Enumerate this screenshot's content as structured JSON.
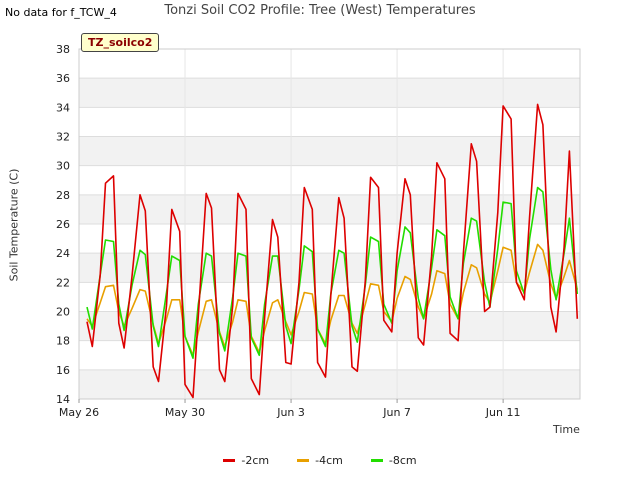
{
  "page": {
    "corner_note": "No data for f_TCW_4",
    "site_label": "TZ_soilco2"
  },
  "chart_data": {
    "type": "line",
    "title": "Tonzi Soil CO2 Profile: Tree (West) Temperatures",
    "xlabel": "Time",
    "ylabel": "Soil Temperature (C)",
    "ylim": [
      14,
      38
    ],
    "y_ticks": [
      14,
      16,
      18,
      20,
      22,
      24,
      26,
      28,
      30,
      32,
      34,
      36,
      38
    ],
    "x_ticks": [
      {
        "label": "May 26",
        "day": 0
      },
      {
        "label": "May 30",
        "day": 4
      },
      {
        "label": "Jun 3",
        "day": 8
      },
      {
        "label": "Jun 7",
        "day": 12
      },
      {
        "label": "Jun 11",
        "day": 16
      }
    ],
    "xlim_days": [
      0,
      18.9
    ],
    "grid": true,
    "legend_position": "bottom",
    "series": [
      {
        "name": "-2cm",
        "color": "#dd0000",
        "points": [
          [
            0.3,
            19.3
          ],
          [
            0.5,
            17.6
          ],
          [
            0.8,
            22.5
          ],
          [
            1.0,
            28.8
          ],
          [
            1.3,
            29.3
          ],
          [
            1.5,
            19.2
          ],
          [
            1.7,
            17.5
          ],
          [
            2.0,
            22.4
          ],
          [
            2.3,
            28.0
          ],
          [
            2.5,
            26.9
          ],
          [
            2.8,
            16.2
          ],
          [
            3.0,
            15.2
          ],
          [
            3.3,
            20.4
          ],
          [
            3.5,
            27.0
          ],
          [
            3.8,
            25.5
          ],
          [
            4.0,
            15.0
          ],
          [
            4.3,
            14.1
          ],
          [
            4.5,
            19.7
          ],
          [
            4.8,
            28.1
          ],
          [
            5.0,
            27.1
          ],
          [
            5.3,
            16.0
          ],
          [
            5.5,
            15.2
          ],
          [
            5.8,
            20.4
          ],
          [
            6.0,
            28.1
          ],
          [
            6.3,
            27.0
          ],
          [
            6.5,
            15.4
          ],
          [
            6.8,
            14.3
          ],
          [
            7.0,
            19.6
          ],
          [
            7.3,
            26.3
          ],
          [
            7.5,
            25.1
          ],
          [
            7.8,
            16.5
          ],
          [
            8.0,
            16.4
          ],
          [
            8.3,
            22.0
          ],
          [
            8.5,
            28.5
          ],
          [
            8.8,
            27.0
          ],
          [
            9.0,
            16.5
          ],
          [
            9.3,
            15.5
          ],
          [
            9.5,
            21.1
          ],
          [
            9.8,
            27.8
          ],
          [
            10.0,
            26.4
          ],
          [
            10.3,
            16.2
          ],
          [
            10.5,
            15.9
          ],
          [
            10.8,
            22.1
          ],
          [
            11.0,
            29.2
          ],
          [
            11.3,
            28.5
          ],
          [
            11.5,
            19.4
          ],
          [
            11.8,
            18.6
          ],
          [
            12.0,
            24.0
          ],
          [
            12.3,
            29.1
          ],
          [
            12.5,
            28.0
          ],
          [
            12.8,
            18.2
          ],
          [
            13.0,
            17.7
          ],
          [
            13.3,
            23.8
          ],
          [
            13.5,
            30.2
          ],
          [
            13.8,
            29.1
          ],
          [
            14.0,
            18.5
          ],
          [
            14.3,
            18.0
          ],
          [
            14.5,
            24.0
          ],
          [
            14.8,
            31.5
          ],
          [
            15.0,
            30.3
          ],
          [
            15.3,
            20.0
          ],
          [
            15.5,
            20.3
          ],
          [
            15.8,
            26.8
          ],
          [
            16.0,
            34.1
          ],
          [
            16.3,
            33.2
          ],
          [
            16.5,
            22.0
          ],
          [
            16.8,
            20.8
          ],
          [
            17.0,
            26.5
          ],
          [
            17.3,
            34.2
          ],
          [
            17.5,
            32.8
          ],
          [
            17.8,
            20.3
          ],
          [
            18.0,
            18.6
          ],
          [
            18.3,
            24.4
          ],
          [
            18.5,
            31.0
          ],
          [
            18.8,
            19.5
          ]
        ]
      },
      {
        "name": "-4cm",
        "color": "#e8a000",
        "points": [
          [
            0.3,
            19.5
          ],
          [
            0.5,
            19.0
          ],
          [
            0.8,
            20.6
          ],
          [
            1.0,
            21.7
          ],
          [
            1.3,
            21.8
          ],
          [
            1.5,
            20.0
          ],
          [
            1.7,
            19.0
          ],
          [
            2.0,
            20.2
          ],
          [
            2.3,
            21.5
          ],
          [
            2.5,
            21.4
          ],
          [
            2.8,
            19.1
          ],
          [
            3.0,
            17.8
          ],
          [
            3.3,
            19.5
          ],
          [
            3.5,
            20.8
          ],
          [
            3.8,
            20.8
          ],
          [
            4.0,
            18.3
          ],
          [
            4.3,
            17.0
          ],
          [
            4.5,
            18.6
          ],
          [
            4.8,
            20.7
          ],
          [
            5.0,
            20.8
          ],
          [
            5.3,
            18.6
          ],
          [
            5.5,
            17.6
          ],
          [
            5.8,
            19.3
          ],
          [
            6.0,
            20.8
          ],
          [
            6.3,
            20.7
          ],
          [
            6.5,
            18.3
          ],
          [
            6.8,
            17.2
          ],
          [
            7.0,
            18.7
          ],
          [
            7.3,
            20.6
          ],
          [
            7.5,
            20.8
          ],
          [
            7.8,
            19.3
          ],
          [
            8.0,
            18.4
          ],
          [
            8.3,
            20.0
          ],
          [
            8.5,
            21.3
          ],
          [
            8.8,
            21.2
          ],
          [
            9.0,
            18.8
          ],
          [
            9.3,
            17.8
          ],
          [
            9.5,
            19.4
          ],
          [
            9.8,
            21.1
          ],
          [
            10.0,
            21.1
          ],
          [
            10.3,
            19.2
          ],
          [
            10.5,
            18.5
          ],
          [
            10.8,
            20.5
          ],
          [
            11.0,
            21.9
          ],
          [
            11.3,
            21.8
          ],
          [
            11.5,
            20.0
          ],
          [
            11.8,
            19.3
          ],
          [
            12.0,
            20.9
          ],
          [
            12.3,
            22.4
          ],
          [
            12.5,
            22.2
          ],
          [
            12.8,
            20.3
          ],
          [
            13.0,
            19.5
          ],
          [
            13.3,
            21.2
          ],
          [
            13.5,
            22.8
          ],
          [
            13.8,
            22.6
          ],
          [
            14.0,
            20.5
          ],
          [
            14.3,
            19.5
          ],
          [
            14.5,
            21.3
          ],
          [
            14.8,
            23.2
          ],
          [
            15.0,
            23.0
          ],
          [
            15.3,
            21.2
          ],
          [
            15.5,
            20.6
          ],
          [
            15.8,
            22.8
          ],
          [
            16.0,
            24.4
          ],
          [
            16.3,
            24.2
          ],
          [
            16.5,
            22.0
          ],
          [
            16.8,
            21.3
          ],
          [
            17.0,
            22.7
          ],
          [
            17.3,
            24.6
          ],
          [
            17.5,
            24.2
          ],
          [
            17.8,
            21.9
          ],
          [
            18.0,
            20.9
          ],
          [
            18.3,
            22.4
          ],
          [
            18.5,
            23.5
          ],
          [
            18.8,
            21.5
          ]
        ]
      },
      {
        "name": "-8cm",
        "color": "#22dd00",
        "points": [
          [
            0.3,
            20.3
          ],
          [
            0.5,
            18.8
          ],
          [
            0.8,
            22.5
          ],
          [
            1.0,
            24.9
          ],
          [
            1.3,
            24.8
          ],
          [
            1.5,
            20.5
          ],
          [
            1.7,
            18.7
          ],
          [
            2.0,
            21.8
          ],
          [
            2.3,
            24.2
          ],
          [
            2.5,
            23.9
          ],
          [
            2.8,
            19.0
          ],
          [
            3.0,
            17.6
          ],
          [
            3.3,
            21.3
          ],
          [
            3.5,
            23.8
          ],
          [
            3.8,
            23.5
          ],
          [
            4.0,
            18.3
          ],
          [
            4.3,
            16.8
          ],
          [
            4.5,
            20.5
          ],
          [
            4.8,
            24.0
          ],
          [
            5.0,
            23.8
          ],
          [
            5.3,
            18.5
          ],
          [
            5.5,
            17.3
          ],
          [
            5.8,
            21.0
          ],
          [
            6.0,
            24.0
          ],
          [
            6.3,
            23.8
          ],
          [
            6.5,
            18.2
          ],
          [
            6.8,
            17.0
          ],
          [
            7.0,
            20.5
          ],
          [
            7.3,
            23.8
          ],
          [
            7.5,
            23.8
          ],
          [
            7.8,
            19.0
          ],
          [
            8.0,
            17.8
          ],
          [
            8.3,
            21.5
          ],
          [
            8.5,
            24.5
          ],
          [
            8.8,
            24.1
          ],
          [
            9.0,
            18.8
          ],
          [
            9.3,
            17.6
          ],
          [
            9.5,
            21.2
          ],
          [
            9.8,
            24.2
          ],
          [
            10.0,
            24.0
          ],
          [
            10.3,
            19.0
          ],
          [
            10.5,
            17.9
          ],
          [
            10.8,
            21.8
          ],
          [
            11.0,
            25.1
          ],
          [
            11.3,
            24.8
          ],
          [
            11.5,
            20.5
          ],
          [
            11.8,
            19.2
          ],
          [
            12.0,
            22.8
          ],
          [
            12.3,
            25.8
          ],
          [
            12.5,
            25.4
          ],
          [
            12.8,
            20.9
          ],
          [
            13.0,
            19.5
          ],
          [
            13.3,
            23.0
          ],
          [
            13.5,
            25.6
          ],
          [
            13.8,
            25.2
          ],
          [
            14.0,
            21.0
          ],
          [
            14.3,
            19.5
          ],
          [
            14.5,
            23.3
          ],
          [
            14.8,
            26.4
          ],
          [
            15.0,
            26.2
          ],
          [
            15.3,
            22.0
          ],
          [
            15.5,
            20.3
          ],
          [
            15.8,
            24.3
          ],
          [
            16.0,
            27.5
          ],
          [
            16.3,
            27.4
          ],
          [
            16.5,
            22.8
          ],
          [
            16.8,
            21.2
          ],
          [
            17.0,
            25.0
          ],
          [
            17.3,
            28.5
          ],
          [
            17.5,
            28.2
          ],
          [
            17.8,
            22.9
          ],
          [
            18.0,
            20.8
          ],
          [
            18.3,
            24.0
          ],
          [
            18.5,
            26.4
          ],
          [
            18.8,
            21.2
          ]
        ]
      }
    ]
  }
}
